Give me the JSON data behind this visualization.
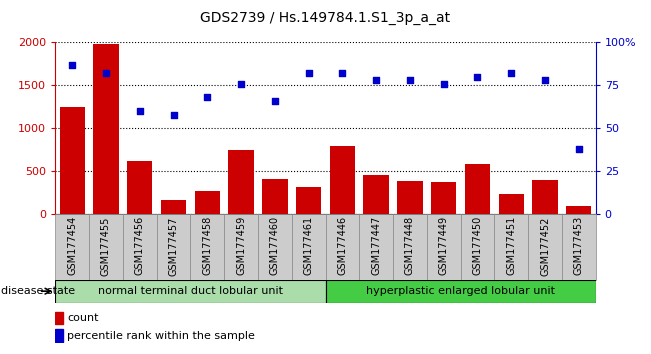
{
  "title": "GDS2739 / Hs.149784.1.S1_3p_a_at",
  "samples": [
    "GSM177454",
    "GSM177455",
    "GSM177456",
    "GSM177457",
    "GSM177458",
    "GSM177459",
    "GSM177460",
    "GSM177461",
    "GSM177446",
    "GSM177447",
    "GSM177448",
    "GSM177449",
    "GSM177450",
    "GSM177451",
    "GSM177452",
    "GSM177453"
  ],
  "counts": [
    1250,
    1980,
    620,
    160,
    270,
    750,
    410,
    320,
    790,
    460,
    390,
    370,
    580,
    240,
    400,
    90
  ],
  "percentiles": [
    87,
    82,
    60,
    58,
    68,
    76,
    66,
    82,
    82,
    78,
    78,
    76,
    80,
    82,
    78,
    38
  ],
  "group1_count": 8,
  "group2_count": 8,
  "group1_label": "normal terminal duct lobular unit",
  "group2_label": "hyperplastic enlarged lobular unit",
  "disease_state_label": "disease state",
  "bar_color": "#cc0000",
  "dot_color": "#0000cc",
  "left_axis_color": "#cc0000",
  "right_axis_color": "#0000cc",
  "ylim_left": [
    0,
    2000
  ],
  "ylim_right": [
    0,
    100
  ],
  "yticks_left": [
    0,
    500,
    1000,
    1500,
    2000
  ],
  "yticks_right": [
    0,
    25,
    50,
    75,
    100
  ],
  "ytick_labels_left": [
    "0",
    "500",
    "1000",
    "1500",
    "2000"
  ],
  "ytick_labels_right": [
    "0",
    "25",
    "50",
    "75",
    "100%"
  ],
  "group1_color": "#aaddaa",
  "group2_color": "#44cc44",
  "legend_count_label": "count",
  "legend_pct_label": "percentile rank within the sample",
  "tick_label_bg": "#cccccc",
  "title_fontsize": 10,
  "axis_fontsize": 8,
  "label_fontsize": 7
}
